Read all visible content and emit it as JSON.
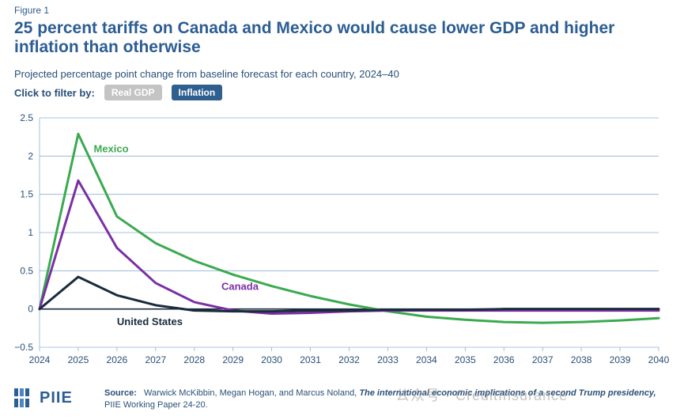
{
  "figure_label": "Figure 1",
  "title": "25 percent tariffs on Canada and Mexico would cause lower GDP and higher inflation than otherwise",
  "subtitle": "Projected percentage point change from baseline forecast for each country, 2024–40",
  "filter": {
    "label": "Click to filter by:",
    "options": [
      "Real GDP",
      "Inflation"
    ],
    "selected": "Inflation"
  },
  "chart_data": {
    "type": "line",
    "x": [
      2024,
      2025,
      2026,
      2027,
      2028,
      2029,
      2030,
      2031,
      2032,
      2033,
      2034,
      2035,
      2036,
      2037,
      2038,
      2039,
      2040
    ],
    "xlim": [
      2024,
      2040
    ],
    "ylim": [
      -0.5,
      2.5
    ],
    "yticks": [
      "2.5",
      "2",
      "1.5",
      "1",
      "0.5",
      "0",
      "−0.5"
    ],
    "xticks": [
      "2024",
      "2025",
      "2026",
      "2027",
      "2028",
      "2029",
      "2030",
      "2031",
      "2032",
      "2033",
      "2034",
      "2035",
      "2036",
      "2037",
      "2038",
      "2039",
      "2040"
    ],
    "grid": true,
    "series": [
      {
        "name": "Mexico",
        "color": "#3aaa4f",
        "values": [
          0,
          2.29,
          1.21,
          0.86,
          0.63,
          0.45,
          0.3,
          0.17,
          0.06,
          -0.03,
          -0.1,
          -0.14,
          -0.17,
          -0.18,
          -0.17,
          -0.15,
          -0.12
        ]
      },
      {
        "name": "Canada",
        "color": "#7b2fa5",
        "values": [
          0,
          1.68,
          0.8,
          0.34,
          0.09,
          -0.02,
          -0.06,
          -0.05,
          -0.03,
          -0.02,
          -0.02,
          -0.02,
          -0.02,
          -0.02,
          -0.02,
          -0.02,
          -0.02
        ]
      },
      {
        "name": "United States",
        "color": "#1a2b3c",
        "values": [
          0,
          0.42,
          0.18,
          0.05,
          -0.02,
          -0.03,
          -0.03,
          -0.02,
          -0.02,
          -0.01,
          -0.01,
          -0.01,
          0,
          0,
          0,
          0,
          0
        ]
      }
    ]
  },
  "source": {
    "label": "Source:",
    "authors": "Warwick McKibbin, Megan Hogan, and Marcus Noland,",
    "paper_title": "The international economic implications of a second Trump presidency,",
    "series": "PIIE Working Paper 24-20."
  },
  "logo_text": "PIIE",
  "watermark": "公众号 · CreditInsurance"
}
